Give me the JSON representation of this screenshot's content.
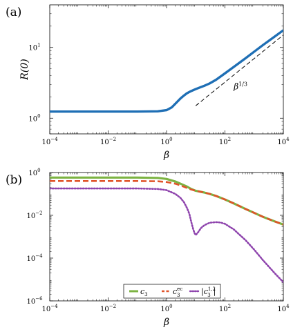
{
  "chart_data": [
    {
      "type": "line",
      "panel_label": "(a)",
      "xlabel": "β",
      "ylabel": "R(0)",
      "xscale": "log",
      "yscale": "log",
      "xlim": [
        0.0001,
        10000
      ],
      "ylim": [
        0.6,
        40
      ],
      "x_ticks": [
        {
          "v": 0.0001,
          "base": "10",
          "exp": "−4"
        },
        {
          "v": 0.01,
          "base": "10",
          "exp": "−2"
        },
        {
          "v": 1,
          "base": "10",
          "exp": "0"
        },
        {
          "v": 100,
          "base": "10",
          "exp": "2"
        },
        {
          "v": 10000,
          "base": "10",
          "exp": "4"
        }
      ],
      "y_ticks": [
        {
          "v": 1,
          "base": "10",
          "exp": "0"
        },
        {
          "v": 10,
          "base": "10",
          "exp": "1"
        }
      ],
      "grid": false,
      "series": [
        {
          "color": "#1f6fb5",
          "style": "solid",
          "x": [
            0.0001,
            0.001,
            0.01,
            0.1,
            0.5,
            1,
            1.5,
            2,
            3,
            4,
            5,
            7,
            10,
            15,
            20,
            30,
            50,
            100,
            200,
            500,
            1000,
            2000,
            5000,
            10000
          ],
          "y": [
            1.24,
            1.24,
            1.24,
            1.24,
            1.25,
            1.3,
            1.42,
            1.6,
            1.9,
            2.1,
            2.25,
            2.42,
            2.58,
            2.75,
            2.88,
            3.1,
            3.5,
            4.3,
            5.3,
            7.0,
            8.7,
            10.8,
            14.2,
            17.5
          ]
        },
        {
          "color": "#000000",
          "style": "dashed",
          "x": [
            10,
            10000
          ],
          "y": [
            1.5,
            15.0
          ]
        }
      ],
      "annotations": [
        {
          "base": "β",
          "exp": "1/3",
          "x": 200,
          "y": 2.55
        }
      ]
    },
    {
      "type": "line",
      "panel_label": "(b)",
      "xlabel": "β",
      "xscale": "log",
      "yscale": "log",
      "xlim": [
        0.0001,
        10000
      ],
      "ylim": [
        1e-06,
        1
      ],
      "x_ticks": [
        {
          "v": 0.0001,
          "base": "10",
          "exp": "−4"
        },
        {
          "v": 0.01,
          "base": "10",
          "exp": "−2"
        },
        {
          "v": 1,
          "base": "10",
          "exp": "0"
        },
        {
          "v": 100,
          "base": "10",
          "exp": "2"
        },
        {
          "v": 10000,
          "base": "10",
          "exp": "4"
        }
      ],
      "y_ticks": [
        {
          "v": 1e-06,
          "base": "10",
          "exp": "−6"
        },
        {
          "v": 0.0001,
          "base": "10",
          "exp": "−4"
        },
        {
          "v": 0.01,
          "base": "10",
          "exp": "−2"
        },
        {
          "v": 1,
          "base": "10",
          "exp": "0"
        }
      ],
      "grid": false,
      "legend_position": "bottom-center",
      "series": [
        {
          "legend": {
            "base": "c",
            "sub": "3",
            "sup": ""
          },
          "color": "#7cb342",
          "style": "solid",
          "x": [
            0.0001,
            0.001,
            0.01,
            0.1,
            0.5,
            1,
            2,
            3,
            5,
            7,
            10,
            15,
            20,
            30,
            50,
            100,
            200,
            500,
            1000,
            2000,
            5000,
            10000
          ],
          "y": [
            0.58,
            0.58,
            0.58,
            0.58,
            0.56,
            0.5,
            0.38,
            0.3,
            0.22,
            0.17,
            0.14,
            0.125,
            0.115,
            0.1,
            0.08,
            0.055,
            0.036,
            0.02,
            0.013,
            0.0085,
            0.0052,
            0.0037
          ]
        },
        {
          "legend": {
            "base": "c",
            "sub": "3",
            "sup": "ec"
          },
          "color": "#e0542a",
          "style": "dashed",
          "x": [
            0.0001,
            0.001,
            0.01,
            0.1,
            0.5,
            1,
            2,
            3,
            5,
            7,
            10,
            15,
            20,
            30,
            50,
            100,
            200,
            500,
            1000,
            2000,
            5000,
            10000
          ],
          "y": [
            0.4,
            0.4,
            0.4,
            0.4,
            0.39,
            0.36,
            0.3,
            0.25,
            0.19,
            0.16,
            0.14,
            0.125,
            0.115,
            0.1,
            0.08,
            0.055,
            0.036,
            0.02,
            0.013,
            0.0085,
            0.0052,
            0.0037
          ]
        },
        {
          "legend": {
            "base": "|c",
            "sub": "3",
            "sup": "1,2",
            "tail": "|"
          },
          "color": "#8e44ad",
          "style": "dotted",
          "x": [
            0.0001,
            0.001,
            0.01,
            0.1,
            0.5,
            1,
            2,
            3,
            4,
            5,
            6,
            7,
            8,
            9,
            10,
            12,
            15,
            20,
            30,
            50,
            70,
            100,
            200,
            500,
            1000,
            2000,
            5000,
            10000
          ],
          "y": [
            0.18,
            0.18,
            0.18,
            0.18,
            0.17,
            0.15,
            0.1,
            0.065,
            0.04,
            0.022,
            0.012,
            0.005,
            0.0025,
            0.0015,
            0.0012,
            0.0016,
            0.0025,
            0.0035,
            0.0045,
            0.0048,
            0.0046,
            0.004,
            0.0022,
            0.0007,
            0.00025,
            8e-05,
            2e-05,
            7.5e-06
          ]
        }
      ]
    }
  ]
}
